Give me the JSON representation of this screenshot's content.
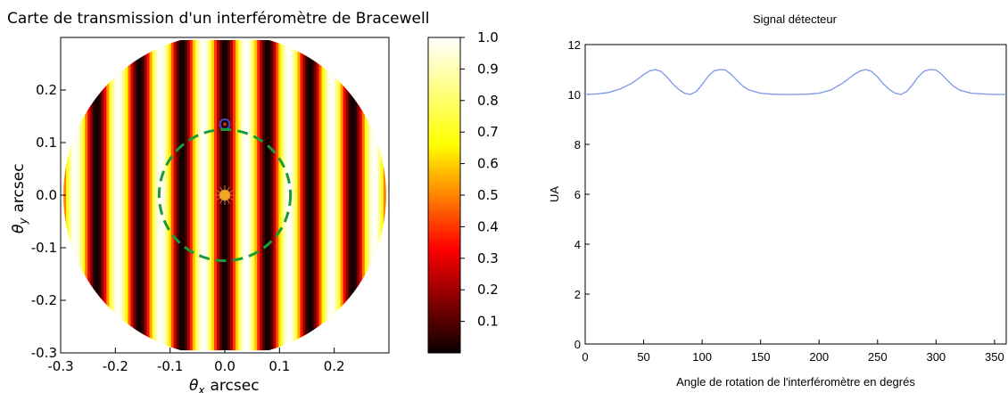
{
  "chart_data": [
    {
      "type": "heatmap",
      "title": "Carte de transmission d'un interféromètre de Bracewell",
      "xlabel_symbol": "θ",
      "xlabel_sub": "x",
      "xlabel_unit": "arcsec",
      "ylabel_symbol": "θ",
      "ylabel_sub": "y",
      "ylabel_unit": "arcsec",
      "xlim": [
        -0.3,
        0.3
      ],
      "ylim": [
        -0.3,
        0.3
      ],
      "x_ticks": [
        -0.3,
        -0.2,
        -0.1,
        0.0,
        0.1,
        0.2
      ],
      "y_ticks": [
        -0.3,
        -0.2,
        -0.1,
        0.0,
        0.1,
        0.2
      ],
      "x_tick_labels": [
        "-0.3",
        "-0.2",
        "-0.1",
        "0.0",
        "0.1",
        "0.2"
      ],
      "y_tick_labels": [
        "-0.3",
        "-0.2",
        "-0.1",
        "0.0",
        "0.1",
        "0.2"
      ],
      "field_radius": 0.295,
      "fringe_period": 0.078,
      "null_at_x": 0.0,
      "transmission_function": "sin^2(pi * x / period)",
      "colormap": "hot",
      "colorbar": {
        "range": [
          0.0,
          1.0
        ],
        "ticks": [
          0.1,
          0.2,
          0.3,
          0.4,
          0.5,
          0.6,
          0.7,
          0.8,
          0.9,
          1.0
        ],
        "tick_labels": [
          "0.1",
          "0.2",
          "0.3",
          "0.4",
          "0.5",
          "0.6",
          "0.7",
          "0.8",
          "0.9",
          "1.0"
        ]
      },
      "annotations": [
        {
          "kind": "star",
          "x": 0.0,
          "y": 0.0,
          "color": "#f5a623"
        },
        {
          "kind": "planet",
          "x": 0.0,
          "y": 0.135,
          "color": "#3b4cc0"
        },
        {
          "kind": "orbit-dashed-circle",
          "center": [
            0.0,
            0.0
          ],
          "radius": 0.12,
          "color": "#1a9a3a"
        }
      ]
    },
    {
      "type": "line",
      "title": "Signal détecteur",
      "xlabel": "Angle de rotation de l'interféromètre en degrés",
      "ylabel": "UA",
      "xlim": [
        0,
        360
      ],
      "ylim": [
        0,
        12
      ],
      "x_ticks": [
        0,
        50,
        100,
        150,
        200,
        250,
        300,
        350
      ],
      "y_ticks": [
        0,
        2,
        4,
        6,
        8,
        10,
        12
      ],
      "grid": false,
      "series": [
        {
          "color": "#7b96e8",
          "x": [
            0,
            10,
            20,
            30,
            40,
            45,
            50,
            55,
            60,
            65,
            70,
            75,
            80,
            85,
            90,
            95,
            100,
            105,
            110,
            115,
            120,
            125,
            130,
            135,
            140,
            150,
            160,
            170,
            180,
            190,
            200,
            210,
            220,
            225,
            230,
            235,
            240,
            245,
            250,
            255,
            260,
            265,
            270,
            275,
            280,
            285,
            290,
            295,
            300,
            305,
            310,
            315,
            320,
            330,
            340,
            350,
            360
          ],
          "y": [
            10.0,
            10.02,
            10.08,
            10.22,
            10.45,
            10.62,
            10.8,
            10.94,
            11.0,
            10.92,
            10.7,
            10.42,
            10.2,
            10.05,
            10.0,
            10.12,
            10.4,
            10.72,
            10.94,
            11.0,
            10.98,
            10.8,
            10.55,
            10.33,
            10.18,
            10.05,
            10.01,
            10.0,
            10.0,
            10.01,
            10.05,
            10.18,
            10.45,
            10.62,
            10.8,
            10.94,
            11.0,
            10.92,
            10.7,
            10.42,
            10.2,
            10.05,
            10.0,
            10.12,
            10.4,
            10.72,
            10.94,
            11.0,
            10.98,
            10.8,
            10.55,
            10.33,
            10.18,
            10.05,
            10.02,
            10.0,
            10.0
          ]
        }
      ]
    }
  ]
}
